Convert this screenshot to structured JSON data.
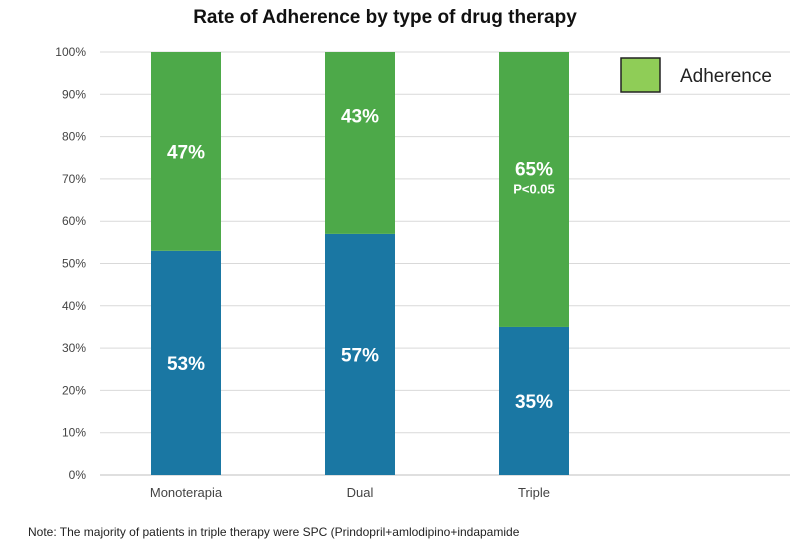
{
  "chart_data": {
    "type": "bar",
    "stacked": true,
    "title": "Rate of Adherence by type of drug therapy",
    "categories": [
      "Monoterapia",
      "Dual",
      "Triple"
    ],
    "series": [
      {
        "color": "#1a77a3",
        "values": [
          53,
          57,
          35
        ],
        "labels": [
          "53%",
          "57%",
          "35%"
        ]
      },
      {
        "name": "Adherence",
        "color": "#4da949",
        "values": [
          47,
          43,
          65
        ],
        "labels": [
          "47%",
          "43%",
          "65%"
        ]
      }
    ],
    "annotations": [
      {
        "category": "Triple",
        "text": "P<0.05"
      }
    ],
    "ylim": [
      0,
      100
    ],
    "yticks": [
      "0%",
      "10%",
      "20%",
      "30%",
      "40%",
      "50%",
      "60%",
      "70%",
      "80%",
      "90%",
      "100%"
    ],
    "grid": true,
    "legend": {
      "position": "top-right",
      "entries": [
        "Adherence"
      ],
      "swatch_color": "#8fcd57"
    }
  },
  "note": "Note: The majority of patients in triple therapy were SPC (Prindopril+amlodipino+indapamide"
}
